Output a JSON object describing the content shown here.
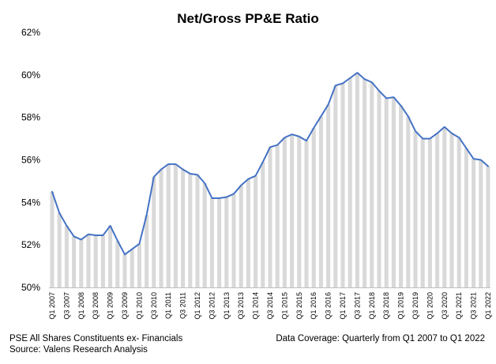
{
  "chart_data": {
    "type": "bar+line",
    "title": "Net/Gross PP&E Ratio",
    "ylim": [
      50,
      62
    ],
    "ytick_labels": [
      "50%",
      "52%",
      "54%",
      "56%",
      "58%",
      "60%",
      "62%"
    ],
    "yticks": [
      50,
      52,
      54,
      56,
      58,
      60,
      62
    ],
    "grid": false,
    "legend": "none",
    "colors": {
      "line": "#4472C4",
      "bars": "#D9D9D9"
    },
    "x": [
      "Q1 2007",
      "Q2 2007",
      "Q3 2007",
      "Q4 2007",
      "Q1 2008",
      "Q2 2008",
      "Q3 2008",
      "Q4 2008",
      "Q1 2009",
      "Q2 2009",
      "Q3 2009",
      "Q4 2009",
      "Q1 2010",
      "Q2 2010",
      "Q3 2010",
      "Q4 2010",
      "Q1 2011",
      "Q2 2011",
      "Q3 2011",
      "Q4 2011",
      "Q1 2012",
      "Q2 2012",
      "Q3 2012",
      "Q4 2012",
      "Q1 2013",
      "Q2 2013",
      "Q3 2013",
      "Q4 2013",
      "Q1 2014",
      "Q2 2014",
      "Q3 2014",
      "Q4 2014",
      "Q1 2015",
      "Q2 2015",
      "Q3 2015",
      "Q4 2015",
      "Q1 2016",
      "Q2 2016",
      "Q3 2016",
      "Q4 2016",
      "Q1 2017",
      "Q2 2017",
      "Q3 2017",
      "Q4 2017",
      "Q1 2018",
      "Q2 2018",
      "Q3 2018",
      "Q4 2018",
      "Q1 2019",
      "Q2 2019",
      "Q3 2019",
      "Q4 2019",
      "Q1 2020",
      "Q2 2020",
      "Q3 2020",
      "Q4 2020",
      "Q1 2021",
      "Q2 2021",
      "Q3 2021",
      "Q4 2021",
      "Q1 2022"
    ],
    "xtick_labels": [
      "Q1 2007",
      "Q3 2007",
      "Q1 2008",
      "Q3 2008",
      "Q1 2009",
      "Q3 2009",
      "Q1 2010",
      "Q3 2010",
      "Q1 2011",
      "Q3 2011",
      "Q1 2012",
      "Q3 2012",
      "Q1 2013",
      "Q3 2013",
      "Q1 2014",
      "Q3 2014",
      "Q1 2015",
      "Q3 2015",
      "Q1 2016",
      "Q3 2016",
      "Q1 2017",
      "Q3 2017",
      "Q1 2018",
      "Q3 2018",
      "Q1 2019",
      "Q3 2019",
      "Q1 2020",
      "Q3 2020",
      "Q1 2021",
      "Q3 2021",
      "Q1 2022"
    ],
    "values": [
      54.5,
      53.5,
      52.9,
      52.4,
      52.25,
      52.5,
      52.45,
      52.45,
      52.9,
      52.2,
      51.55,
      51.8,
      52.05,
      53.4,
      55.2,
      55.55,
      55.8,
      55.8,
      55.55,
      55.35,
      55.3,
      54.9,
      54.2,
      54.2,
      54.25,
      54.4,
      54.8,
      55.1,
      55.25,
      55.9,
      56.6,
      56.7,
      57.05,
      57.2,
      57.1,
      56.9,
      57.5,
      58.05,
      58.6,
      59.5,
      59.6,
      59.85,
      60.1,
      59.8,
      59.65,
      59.25,
      58.9,
      58.95,
      58.55,
      58.05,
      57.35,
      57.0,
      57.0,
      57.25,
      57.55,
      57.25,
      57.05,
      56.55,
      56.05,
      56.0,
      55.7
    ]
  },
  "footer": {
    "left_line1": "PSE All Shares Constituents ex- Financials",
    "left_line2": "Source: Valens Research Analysis",
    "right": "Data Coverage: Quarterly from Q1 2007 to Q1 2022"
  }
}
